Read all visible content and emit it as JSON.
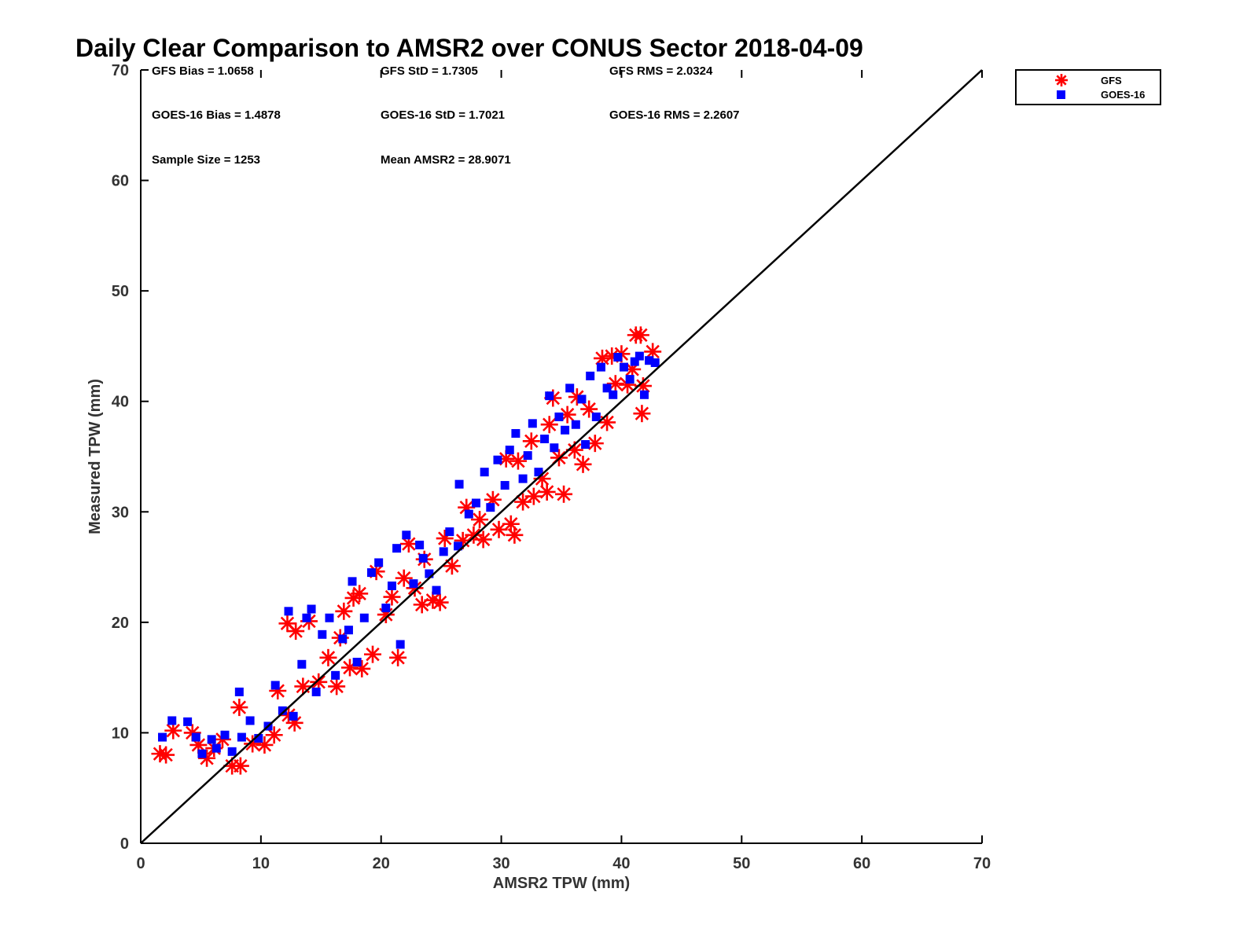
{
  "chart_data": {
    "type": "scatter",
    "title": "Daily Clear Comparison to AMSR2 over CONUS Sector 2018-04-09",
    "xlabel": "AMSR2 TPW (mm)",
    "ylabel": "Measured TPW (mm)",
    "xlim": [
      0,
      70
    ],
    "ylim": [
      0,
      70
    ],
    "xticks": [
      0,
      10,
      20,
      30,
      40,
      50,
      60,
      70
    ],
    "yticks": [
      0,
      10,
      20,
      30,
      40,
      50,
      60,
      70
    ],
    "grid": false,
    "legend_position": "outside-top-right",
    "reference_line": {
      "x": [
        0,
        70
      ],
      "y": [
        0,
        70
      ],
      "color": "#000000"
    },
    "stats": [
      [
        "GFS Bias = 1.0658",
        "GFS StD = 1.7305",
        "GFS RMS = 2.0324"
      ],
      [
        "GOES-16 Bias = 1.4878",
        "GOES-16 StD = 1.7021",
        "GOES-16 RMS = 2.2607"
      ],
      [
        "Sample Size = 1253",
        "Mean AMSR2 = 28.9071"
      ]
    ],
    "series": [
      {
        "name": "GFS",
        "marker": "asterisk",
        "color": "#ff0000",
        "points": [
          [
            1.6,
            8.1
          ],
          [
            2.1,
            8.0
          ],
          [
            2.7,
            10.2
          ],
          [
            4.3,
            10.0
          ],
          [
            4.8,
            8.9
          ],
          [
            5.5,
            7.7
          ],
          [
            6.1,
            8.6
          ],
          [
            6.8,
            9.4
          ],
          [
            7.6,
            7.0
          ],
          [
            8.3,
            7.0
          ],
          [
            8.2,
            12.3
          ],
          [
            9.3,
            9.0
          ],
          [
            10.3,
            8.9
          ],
          [
            11.1,
            9.8
          ],
          [
            11.4,
            13.8
          ],
          [
            12.3,
            11.6
          ],
          [
            12.2,
            19.9
          ],
          [
            12.9,
            19.2
          ],
          [
            12.8,
            10.9
          ],
          [
            13.5,
            14.2
          ],
          [
            14.0,
            20.1
          ],
          [
            14.8,
            14.6
          ],
          [
            15.6,
            16.8
          ],
          [
            16.3,
            14.2
          ],
          [
            16.6,
            18.6
          ],
          [
            16.9,
            21.0
          ],
          [
            17.4,
            15.9
          ],
          [
            17.7,
            22.2
          ],
          [
            18.2,
            22.6
          ],
          [
            18.4,
            15.8
          ],
          [
            19.3,
            17.1
          ],
          [
            19.6,
            24.6
          ],
          [
            20.4,
            20.7
          ],
          [
            20.9,
            22.3
          ],
          [
            21.4,
            16.8
          ],
          [
            21.9,
            24.0
          ],
          [
            22.3,
            27.1
          ],
          [
            22.8,
            23.1
          ],
          [
            23.4,
            21.6
          ],
          [
            23.6,
            25.7
          ],
          [
            24.3,
            22.0
          ],
          [
            24.9,
            21.8
          ],
          [
            25.3,
            27.6
          ],
          [
            25.9,
            25.1
          ],
          [
            26.8,
            27.4
          ],
          [
            27.1,
            30.4
          ],
          [
            27.7,
            27.9
          ],
          [
            28.2,
            29.3
          ],
          [
            28.5,
            27.5
          ],
          [
            29.3,
            31.1
          ],
          [
            29.8,
            28.4
          ],
          [
            30.4,
            34.8
          ],
          [
            30.8,
            28.9
          ],
          [
            31.1,
            27.9
          ],
          [
            31.4,
            34.6
          ],
          [
            31.8,
            30.9
          ],
          [
            32.5,
            36.4
          ],
          [
            32.7,
            31.4
          ],
          [
            33.4,
            33.0
          ],
          [
            33.8,
            31.8
          ],
          [
            34.0,
            37.9
          ],
          [
            34.3,
            40.3
          ],
          [
            34.8,
            34.9
          ],
          [
            35.2,
            31.6
          ],
          [
            35.5,
            38.8
          ],
          [
            36.1,
            35.6
          ],
          [
            36.3,
            40.4
          ],
          [
            36.8,
            34.3
          ],
          [
            37.3,
            39.3
          ],
          [
            37.8,
            36.2
          ],
          [
            38.4,
            43.9
          ],
          [
            38.8,
            38.1
          ],
          [
            39.2,
            44.1
          ],
          [
            39.5,
            41.6
          ],
          [
            40.0,
            44.3
          ],
          [
            40.5,
            41.5
          ],
          [
            40.9,
            42.9
          ],
          [
            41.2,
            46.0
          ],
          [
            41.6,
            46.0
          ],
          [
            41.8,
            41.4
          ],
          [
            41.7,
            38.9
          ],
          [
            42.6,
            44.5
          ]
        ]
      },
      {
        "name": "GOES-16",
        "marker": "square",
        "color": "#0000ff",
        "points": [
          [
            1.8,
            9.6
          ],
          [
            2.6,
            11.1
          ],
          [
            3.9,
            11.0
          ],
          [
            4.6,
            9.6
          ],
          [
            5.1,
            8.1
          ],
          [
            5.9,
            9.4
          ],
          [
            6.3,
            8.6
          ],
          [
            7.0,
            9.8
          ],
          [
            7.6,
            8.3
          ],
          [
            8.2,
            13.7
          ],
          [
            8.4,
            9.6
          ],
          [
            9.1,
            11.1
          ],
          [
            9.8,
            9.5
          ],
          [
            10.6,
            10.6
          ],
          [
            11.2,
            14.3
          ],
          [
            11.8,
            12.0
          ],
          [
            12.3,
            21.0
          ],
          [
            12.7,
            11.5
          ],
          [
            13.4,
            16.2
          ],
          [
            13.8,
            20.4
          ],
          [
            14.2,
            21.2
          ],
          [
            14.6,
            13.7
          ],
          [
            15.1,
            18.9
          ],
          [
            15.7,
            20.4
          ],
          [
            16.2,
            15.2
          ],
          [
            16.8,
            18.5
          ],
          [
            17.3,
            19.3
          ],
          [
            17.6,
            23.7
          ],
          [
            18.0,
            16.4
          ],
          [
            18.6,
            20.4
          ],
          [
            19.2,
            24.5
          ],
          [
            19.8,
            25.4
          ],
          [
            20.4,
            21.3
          ],
          [
            20.9,
            23.3
          ],
          [
            21.3,
            26.7
          ],
          [
            21.6,
            18.0
          ],
          [
            22.1,
            27.9
          ],
          [
            22.7,
            23.5
          ],
          [
            23.2,
            27.0
          ],
          [
            23.5,
            25.8
          ],
          [
            24.0,
            24.4
          ],
          [
            24.6,
            22.9
          ],
          [
            25.2,
            26.4
          ],
          [
            25.7,
            28.2
          ],
          [
            26.4,
            26.9
          ],
          [
            26.5,
            32.5
          ],
          [
            27.3,
            29.8
          ],
          [
            27.9,
            30.8
          ],
          [
            28.6,
            33.6
          ],
          [
            29.1,
            30.4
          ],
          [
            29.7,
            34.7
          ],
          [
            30.3,
            32.4
          ],
          [
            30.7,
            35.6
          ],
          [
            31.2,
            37.1
          ],
          [
            31.8,
            33.0
          ],
          [
            32.2,
            35.1
          ],
          [
            32.6,
            38.0
          ],
          [
            33.1,
            33.6
          ],
          [
            33.6,
            36.6
          ],
          [
            34.0,
            40.5
          ],
          [
            34.4,
            35.8
          ],
          [
            34.8,
            38.6
          ],
          [
            35.3,
            37.4
          ],
          [
            35.7,
            41.2
          ],
          [
            36.2,
            37.9
          ],
          [
            36.7,
            40.2
          ],
          [
            37.0,
            36.1
          ],
          [
            37.4,
            42.3
          ],
          [
            37.9,
            38.6
          ],
          [
            38.3,
            43.1
          ],
          [
            38.8,
            41.2
          ],
          [
            39.3,
            40.6
          ],
          [
            39.7,
            44.0
          ],
          [
            40.2,
            43.1
          ],
          [
            40.7,
            42.0
          ],
          [
            41.1,
            43.6
          ],
          [
            41.5,
            44.1
          ],
          [
            41.9,
            40.6
          ],
          [
            42.3,
            43.7
          ],
          [
            42.8,
            43.5
          ]
        ]
      }
    ]
  }
}
